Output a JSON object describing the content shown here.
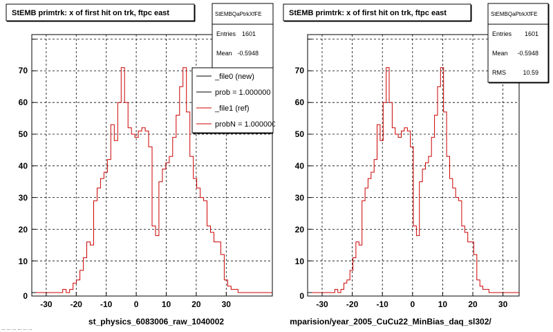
{
  "footer": {
    "text": "... ... ... ... ... ..."
  },
  "chart_data": [
    {
      "type": "histogram",
      "title": "StEMB primtrk: x of first hit on trk, ftpc east",
      "xlabel": "st_physics_6083006_raw_1040002",
      "xlim": [
        -35,
        35
      ],
      "ylim": [
        0,
        78
      ],
      "xticks": [
        -30,
        -20,
        -10,
        0,
        10,
        20,
        30
      ],
      "yticks": [
        0,
        10,
        20,
        30,
        40,
        50,
        60,
        70
      ],
      "grid": true,
      "stats": {
        "title": "StEMBQaPtrkXfFE",
        "rows": [
          {
            "label": "Entries",
            "value": "1601"
          },
          {
            "label": "Mean",
            "value": "-0.5948"
          }
        ]
      },
      "legend": {
        "placement": "top-right",
        "items": [
          {
            "label": "_file0 (new)",
            "color": "#000000"
          },
          {
            "label": "prob = 1.000000",
            "color": "#000000"
          },
          {
            "label": "_file1 (ref)",
            "color": "#cc0000"
          },
          {
            "label": "probN = 1.000000",
            "color": "#cc0000"
          }
        ]
      },
      "series": [
        {
          "name": "_file1 (ref)",
          "color": "#cc0000",
          "bin_edges": [
            -35,
            -34,
            -33,
            -32,
            -31,
            -30,
            -29,
            -28,
            -27,
            -26,
            -25,
            -24,
            -23,
            -22,
            -21,
            -20,
            -19,
            -18,
            -17,
            -16,
            -15,
            -14,
            -13,
            -12,
            -11,
            -10,
            -9,
            -8,
            -7,
            -6,
            -5,
            -4,
            -3,
            -2,
            -1,
            0,
            1,
            2,
            3,
            4,
            5,
            6,
            7,
            8,
            9,
            10,
            11,
            12,
            13,
            14,
            15,
            16,
            17,
            18,
            19,
            20,
            21,
            22,
            23,
            24,
            25,
            26,
            27,
            28,
            29,
            30,
            31,
            32,
            33,
            34,
            35
          ],
          "values": [
            0,
            0,
            0,
            0,
            0,
            0,
            0,
            0,
            0,
            1,
            0,
            1,
            3,
            4,
            7,
            11,
            16,
            15,
            29,
            33,
            36,
            38,
            42,
            53,
            48,
            60,
            71,
            60,
            52,
            50,
            49,
            51,
            52,
            51,
            46,
            21,
            18,
            35,
            39,
            41,
            43,
            49,
            56,
            65,
            71,
            57,
            43,
            36,
            33,
            30,
            29,
            21,
            19,
            16,
            16,
            12,
            4,
            2,
            1,
            1,
            0,
            0,
            0,
            0,
            0,
            0,
            0,
            0,
            0,
            0
          ]
        }
      ]
    },
    {
      "type": "histogram",
      "title": "StEMB primtrk: x of first hit on trk, ftpc east",
      "xlabel": "mparision/year_2005_CuCu22_MinBias_daq_sl302/",
      "xlim": [
        -35,
        35
      ],
      "ylim": [
        0,
        78
      ],
      "xticks": [
        -30,
        -20,
        -10,
        0,
        10,
        20,
        30
      ],
      "yticks": [
        0,
        10,
        20,
        30,
        40,
        50,
        60,
        70
      ],
      "grid": true,
      "stats": {
        "title": "StEMBQaPtrkXfFE",
        "rows": [
          {
            "label": "Entries",
            "value": "1601"
          },
          {
            "label": "Mean",
            "value": "-0.5948"
          },
          {
            "label": "RMS",
            "value": "10.59"
          }
        ]
      },
      "series": [
        {
          "name": "",
          "color": "#cc0000",
          "bin_edges": [
            -35,
            -34,
            -33,
            -32,
            -31,
            -30,
            -29,
            -28,
            -27,
            -26,
            -25,
            -24,
            -23,
            -22,
            -21,
            -20,
            -19,
            -18,
            -17,
            -16,
            -15,
            -14,
            -13,
            -12,
            -11,
            -10,
            -9,
            -8,
            -7,
            -6,
            -5,
            -4,
            -3,
            -2,
            -1,
            0,
            1,
            2,
            3,
            4,
            5,
            6,
            7,
            8,
            9,
            10,
            11,
            12,
            13,
            14,
            15,
            16,
            17,
            18,
            19,
            20,
            21,
            22,
            23,
            24,
            25,
            26,
            27,
            28,
            29,
            30,
            31,
            32,
            33,
            34,
            35
          ],
          "values": [
            0,
            0,
            0,
            0,
            0,
            0,
            0,
            0,
            0,
            1,
            0,
            1,
            3,
            4,
            7,
            11,
            16,
            15,
            29,
            33,
            36,
            38,
            42,
            53,
            48,
            60,
            71,
            60,
            52,
            50,
            49,
            51,
            52,
            51,
            46,
            21,
            18,
            35,
            39,
            41,
            43,
            49,
            56,
            65,
            71,
            57,
            43,
            36,
            33,
            30,
            29,
            21,
            19,
            16,
            16,
            12,
            4,
            2,
            1,
            1,
            0,
            0,
            0,
            0,
            0,
            0,
            0,
            0,
            0,
            0
          ]
        }
      ]
    }
  ]
}
